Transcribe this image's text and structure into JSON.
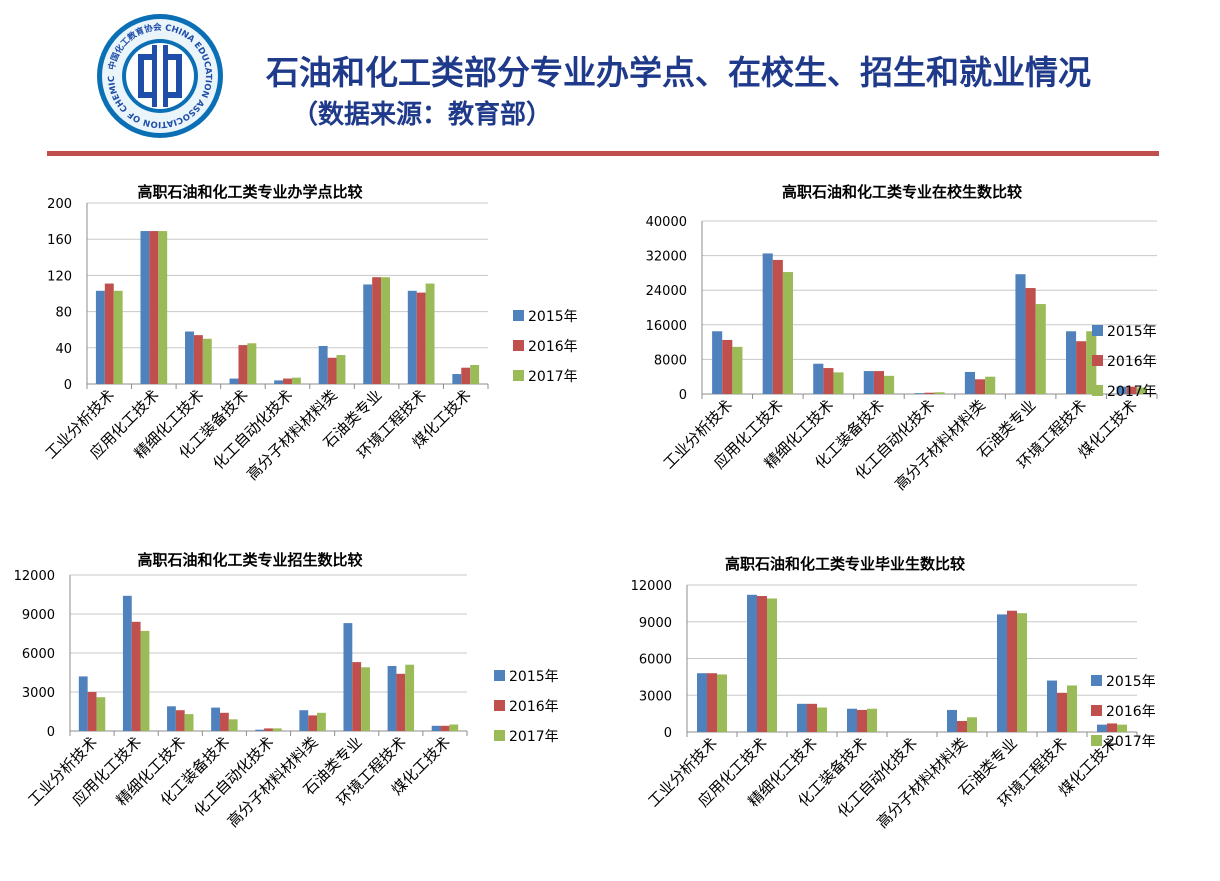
{
  "header": {
    "title": "石油和化工类部分专业办学点、在校生、招生和就业情况",
    "subtitle": "（数据来源：教育部）",
    "logo_text": "中国化工教育协会 CHINA EDUCATION ASSOCIATION OF CHEMICAL INDUSTRY"
  },
  "colors": {
    "accent": "#c0504d",
    "title": "#1f3a8a"
  },
  "chart_data": [
    {
      "type": "bar",
      "title": "高职石油和化工类专业办学点比较",
      "categories": [
        "工业分析技术",
        "应用化工技术",
        "精细化工技术",
        "化工装备技术",
        "化工自动化技术",
        "高分子材料材料类",
        "石油类专业",
        "环境工程技术",
        "煤化工技术"
      ],
      "series": [
        {
          "name": "2015年",
          "color": "#4f81bd",
          "values": [
            103,
            169,
            58,
            6,
            4,
            42,
            110,
            103,
            11
          ]
        },
        {
          "name": "2016年",
          "color": "#c0504d",
          "values": [
            111,
            169,
            54,
            43,
            6,
            29,
            118,
            101,
            18
          ]
        },
        {
          "name": "2017年",
          "color": "#9bbb59",
          "values": [
            103,
            169,
            50,
            45,
            7,
            32,
            118,
            111,
            21
          ]
        }
      ],
      "yticks": [
        "200",
        "160",
        "120",
        "80",
        "40",
        "0"
      ],
      "ylim": [
        0,
        200
      ],
      "legend": "right",
      "grid": true
    },
    {
      "type": "bar",
      "title": "高职石油和化工类专业在校生数比较",
      "categories": [
        "工业分析技术",
        "应用化工技术",
        "精细化工技术",
        "化工装备技术",
        "化工自动化技术",
        "高分子材料材料类",
        "石油类专业",
        "环境工程技术",
        "煤化工技术"
      ],
      "series": [
        {
          "name": "2015年",
          "color": "#4f81bd",
          "values": [
            14500,
            32500,
            7000,
            5300,
            200,
            5100,
            27700,
            14500,
            1700
          ]
        },
        {
          "name": "2016年",
          "color": "#c0504d",
          "values": [
            12500,
            31000,
            6000,
            5300,
            300,
            3400,
            24500,
            12200,
            1700
          ]
        },
        {
          "name": "2017年",
          "color": "#9bbb59",
          "values": [
            10900,
            28200,
            5000,
            4200,
            400,
            4000,
            20800,
            14500,
            1500
          ]
        }
      ],
      "yticks": [
        "40000",
        "32000",
        "24000",
        "16000",
        "8000",
        "0"
      ],
      "ylim": [
        0,
        40000
      ],
      "legend": "right",
      "grid": true
    },
    {
      "type": "bar",
      "title": "高职石油和化工类专业招生数比较",
      "categories": [
        "工业分析技术",
        "应用化工技术",
        "精细化工技术",
        "化工装备技术",
        "化工自动化技术",
        "高分子材料材料类",
        "石油类专业",
        "环境工程技术",
        "煤化工技术"
      ],
      "series": [
        {
          "name": "2015年",
          "color": "#4f81bd",
          "values": [
            4200,
            10400,
            1900,
            1800,
            100,
            1600,
            8300,
            5000,
            400
          ]
        },
        {
          "name": "2016年",
          "color": "#c0504d",
          "values": [
            3000,
            8400,
            1600,
            1400,
            200,
            1200,
            5300,
            4400,
            400
          ]
        },
        {
          "name": "2017年",
          "color": "#9bbb59",
          "values": [
            2600,
            7700,
            1300,
            900,
            200,
            1400,
            4900,
            5100,
            500
          ]
        }
      ],
      "yticks": [
        "12000",
        "9000",
        "6000",
        "3000",
        "0"
      ],
      "ylim": [
        0,
        12000
      ],
      "legend": "right",
      "grid": true
    },
    {
      "type": "bar",
      "title": "高职石油和化工类专业毕业生数比较",
      "categories": [
        "工业分析技术",
        "应用化工技术",
        "精细化工技术",
        "化工装备技术",
        "化工自动化技术",
        "高分子材料材料类",
        "石油类专业",
        "环境工程技术",
        "煤化工技术"
      ],
      "series": [
        {
          "name": "2015年",
          "color": "#4f81bd",
          "values": [
            4800,
            11200,
            2300,
            1900,
            0,
            1800,
            9600,
            4200,
            600
          ]
        },
        {
          "name": "2016年",
          "color": "#c0504d",
          "values": [
            4800,
            11100,
            2300,
            1800,
            0,
            900,
            9900,
            3200,
            700
          ]
        },
        {
          "name": "2017年",
          "color": "#9bbb59",
          "values": [
            4700,
            10900,
            2000,
            1900,
            0,
            1200,
            9700,
            3800,
            600
          ]
        }
      ],
      "yticks": [
        "12000",
        "9000",
        "6000",
        "3000",
        "0"
      ],
      "ylim": [
        0,
        12000
      ],
      "legend": "right",
      "grid": true
    }
  ]
}
